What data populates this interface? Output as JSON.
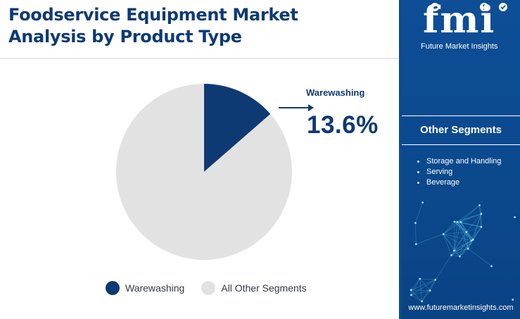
{
  "header": {
    "title_line1": "Foodservice Equipment Market",
    "title_line2": "Analysis by Product Type"
  },
  "colors": {
    "primary": "#0e3a73",
    "secondary": "#e2e2e2",
    "panel": "#0b4a8f"
  },
  "chart_data": {
    "type": "pie",
    "title": "Foodservice Equipment Market Analysis by Product Type",
    "slices": [
      {
        "label": "Warewashing",
        "value": 13.6,
        "color": "#0e3a73"
      },
      {
        "label": "All Other Segments",
        "value": 86.4,
        "color": "#e2e2e2"
      }
    ],
    "legend": [
      "Warewashing",
      "All Other Segments"
    ],
    "legend_position": "bottom",
    "callout": {
      "label": "Warewashing",
      "value_text": "13.6%"
    }
  },
  "sidebar": {
    "logo_text": "fmi",
    "logo_tagline": "Future Market Insights",
    "heading": "Other Segments",
    "items": [
      "Storage and Handling",
      "Serving",
      "Beverage"
    ],
    "website": "www.futuremarketinsights.com"
  }
}
